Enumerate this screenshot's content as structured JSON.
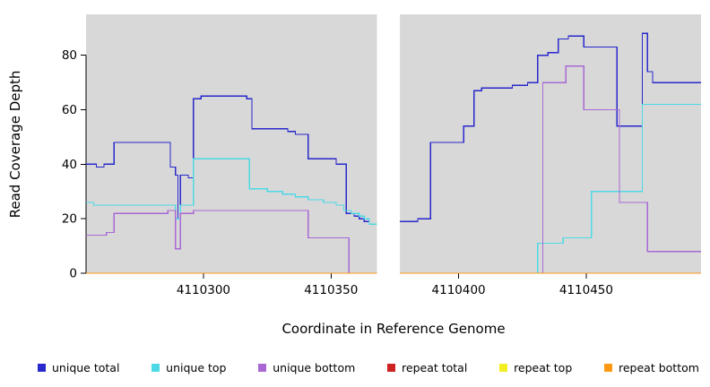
{
  "chart_data": {
    "type": "line",
    "step": true,
    "title": "",
    "xlabel": "Coordinate in Reference Genome",
    "ylabel": "Read Coverage Depth",
    "xlim": [
      4110254,
      4110495
    ],
    "ylim": [
      0,
      95
    ],
    "x_ticks": [
      4110300,
      4110350,
      4110400,
      4110450
    ],
    "y_ticks": [
      0,
      20,
      40,
      60,
      80
    ],
    "grid": false,
    "plot_bg": "#d8d8d8",
    "gap_region": [
      4110368,
      4110377
    ],
    "legend_position": "bottom",
    "series": [
      {
        "name": "unique total",
        "color": "#2828cc",
        "segments": [
          [
            [
              4110254,
              40
            ],
            [
              4110258,
              39
            ],
            [
              4110261,
              40
            ],
            [
              4110265,
              48
            ],
            [
              4110287,
              39
            ],
            [
              4110289,
              36
            ],
            [
              4110290,
              20
            ],
            [
              4110291,
              36
            ],
            [
              4110294,
              35
            ],
            [
              4110296,
              64
            ],
            [
              4110299,
              65
            ],
            [
              4110317,
              64
            ],
            [
              4110319,
              53
            ],
            [
              4110333,
              52
            ],
            [
              4110336,
              51
            ],
            [
              4110341,
              42
            ],
            [
              4110352,
              40
            ],
            [
              4110356,
              22
            ],
            [
              4110359,
              21
            ],
            [
              4110361,
              20
            ],
            [
              4110363,
              19
            ],
            [
              4110365,
              18
            ],
            [
              4110368,
              18
            ]
          ],
          [
            [
              4110377,
              19
            ],
            [
              4110384,
              20
            ],
            [
              4110389,
              48
            ],
            [
              4110402,
              54
            ],
            [
              4110406,
              67
            ],
            [
              4110409,
              68
            ],
            [
              4110421,
              69
            ],
            [
              4110427,
              70
            ],
            [
              4110431,
              80
            ],
            [
              4110435,
              81
            ],
            [
              4110439,
              86
            ],
            [
              4110443,
              87
            ],
            [
              4110449,
              83
            ],
            [
              4110462,
              54
            ],
            [
              4110472,
              88
            ],
            [
              4110474,
              74
            ],
            [
              4110476,
              70
            ],
            [
              4110495,
              70
            ]
          ]
        ]
      },
      {
        "name": "unique top",
        "color": "#4dd9e6",
        "segments": [
          [
            [
              4110254,
              26
            ],
            [
              4110257,
              25
            ],
            [
              4110288,
              25
            ],
            [
              4110289,
              20
            ],
            [
              4110291,
              25
            ],
            [
              4110296,
              42
            ],
            [
              4110318,
              31
            ],
            [
              4110325,
              30
            ],
            [
              4110331,
              29
            ],
            [
              4110336,
              28
            ],
            [
              4110341,
              27
            ],
            [
              4110347,
              26
            ],
            [
              4110352,
              25
            ],
            [
              4110355,
              23
            ],
            [
              4110358,
              22
            ],
            [
              4110361,
              21
            ],
            [
              4110363,
              20
            ],
            [
              4110365,
              18
            ],
            [
              4110368,
              18
            ]
          ],
          [
            [
              4110377,
              0
            ],
            [
              4110431,
              11
            ],
            [
              4110441,
              13
            ],
            [
              4110452,
              30
            ],
            [
              4110472,
              62
            ],
            [
              4110495,
              62
            ]
          ]
        ]
      },
      {
        "name": "unique bottom",
        "color": "#a868d4",
        "segments": [
          [
            [
              4110254,
              14
            ],
            [
              4110262,
              15
            ],
            [
              4110265,
              22
            ],
            [
              4110286,
              23
            ],
            [
              4110289,
              9
            ],
            [
              4110291,
              22
            ],
            [
              4110296,
              23
            ],
            [
              4110341,
              13
            ],
            [
              4110357,
              0
            ],
            [
              4110368,
              0
            ]
          ],
          [
            [
              4110377,
              0
            ],
            [
              4110433,
              70
            ],
            [
              4110442,
              76
            ],
            [
              4110449,
              60
            ],
            [
              4110463,
              26
            ],
            [
              4110474,
              8
            ],
            [
              4110495,
              8
            ]
          ]
        ]
      },
      {
        "name": "repeat total",
        "color": "#cc2222",
        "segments": [
          [
            [
              4110254,
              0
            ],
            [
              4110368,
              0
            ]
          ],
          [
            [
              4110377,
              0
            ],
            [
              4110495,
              0
            ]
          ]
        ]
      },
      {
        "name": "repeat top",
        "color": "#f2ee22",
        "segments": [
          [
            [
              4110254,
              0
            ],
            [
              4110368,
              0
            ]
          ],
          [
            [
              4110377,
              0
            ],
            [
              4110495,
              0
            ]
          ]
        ]
      },
      {
        "name": "repeat bottom",
        "color": "#ff9913",
        "segments": [
          [
            [
              4110254,
              0
            ],
            [
              4110368,
              0
            ]
          ],
          [
            [
              4110377,
              0
            ],
            [
              4110495,
              0
            ]
          ]
        ]
      }
    ],
    "legend": [
      {
        "label": "unique total",
        "color": "#2828cc"
      },
      {
        "label": "unique top",
        "color": "#4dd9e6"
      },
      {
        "label": "unique bottom",
        "color": "#a868d4"
      },
      {
        "label": "repeat total",
        "color": "#cc2222"
      },
      {
        "label": "repeat top",
        "color": "#f2ee22"
      },
      {
        "label": "repeat bottom",
        "color": "#ff9913"
      }
    ]
  }
}
